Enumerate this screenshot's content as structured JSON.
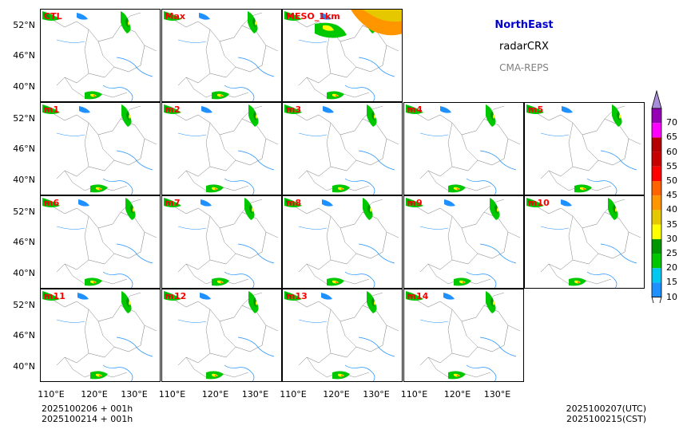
{
  "panels": [
    {
      "label": "CTL",
      "row": 0,
      "col": 0
    },
    {
      "label": "Max",
      "row": 0,
      "col": 1
    },
    {
      "label": "MESO_1km",
      "row": 0,
      "col": 2
    },
    {
      "label": "m1",
      "row": 1,
      "col": 0
    },
    {
      "label": "m2",
      "row": 1,
      "col": 1
    },
    {
      "label": "m3",
      "row": 1,
      "col": 2
    },
    {
      "label": "m4",
      "row": 1,
      "col": 3
    },
    {
      "label": "m5",
      "row": 1,
      "col": 4
    },
    {
      "label": "m6",
      "row": 2,
      "col": 0
    },
    {
      "label": "m7",
      "row": 2,
      "col": 1
    },
    {
      "label": "m8",
      "row": 2,
      "col": 2
    },
    {
      "label": "m9",
      "row": 2,
      "col": 3
    },
    {
      "label": "m10",
      "row": 2,
      "col": 4
    },
    {
      "label": "m11",
      "row": 3,
      "col": 0
    },
    {
      "label": "m12",
      "row": 3,
      "col": 1
    },
    {
      "label": "m13",
      "row": 3,
      "col": 2
    },
    {
      "label": "m14",
      "row": 3,
      "col": 3
    }
  ],
  "lat_labels": [
    "52°N",
    "46°N",
    "40°N"
  ],
  "lon_labels": [
    "110°E",
    "120°E",
    "130°E"
  ],
  "info": {
    "region": "NorthEast",
    "variable": "radarCRX",
    "model": "CMA-REPS"
  },
  "colorbar": {
    "levels": [
      "10",
      "15",
      "20",
      "25",
      "30",
      "35",
      "40",
      "45",
      "50",
      "55",
      "60",
      "65",
      "70"
    ],
    "colors": [
      "#1e90ff",
      "#00c8f0",
      "#00c800",
      "#009600",
      "#ffff00",
      "#e6c800",
      "#ff9600",
      "#ff6400",
      "#ff0000",
      "#c80000",
      "#b40000",
      "#ff00ff",
      "#9600b4"
    ],
    "top_extend_color": "#a88ed8"
  },
  "footer": {
    "init_utc": "2025100206  +  001h",
    "init_cst": "2025100214  +  001h",
    "valid_utc": "2025100207(UTC)",
    "valid_cst": "2025100215(CST)"
  },
  "colors": {
    "label": "#ff0000",
    "region": "#0000cc",
    "model": "#808080",
    "coast": "#1e90ff"
  }
}
